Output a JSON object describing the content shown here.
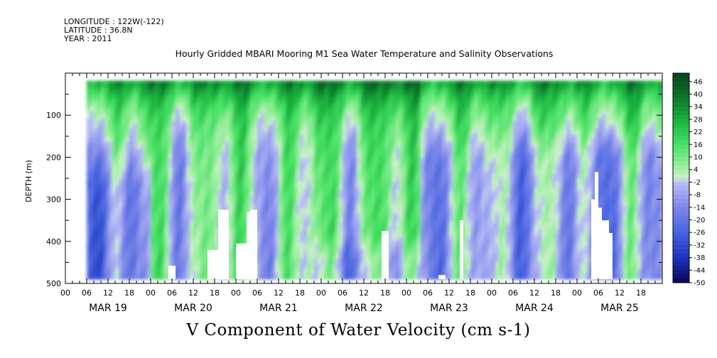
{
  "header": {
    "longitude": "LONGITUDE : 122W(-122)",
    "latitude": "LATITUDE : 36.8N",
    "year": "YEAR : 2011"
  },
  "title": "Hourly Gridded MBARI Mooring M1 Sea Water Temperature and Salinity Observations",
  "caption": "V Component of Water Velocity (cm s-1)",
  "chart_data": {
    "type": "heatmap",
    "title": "Hourly Gridded MBARI Mooring M1 Sea Water Temperature and Salinity Observations",
    "xlabel": "",
    "ylabel": "DEPTH (m)",
    "colorbar_label": "V Component of Water Velocity (cm s-1)",
    "y_inverted": true,
    "ylim": [
      500,
      0
    ],
    "y_ticks": [
      100,
      200,
      300,
      400,
      500
    ],
    "x_hour_ticks": [
      "00",
      "06",
      "12",
      "18",
      "00",
      "06",
      "12",
      "18",
      "00",
      "06",
      "12",
      "18",
      "00",
      "06",
      "12",
      "18",
      "00",
      "06",
      "12",
      "18",
      "00",
      "06",
      "12",
      "18",
      "00",
      "06",
      "12",
      "18"
    ],
    "x_day_labels": [
      "MAR 19",
      "MAR 20",
      "MAR 21",
      "MAR 22",
      "MAR 23",
      "MAR 24",
      "MAR 25"
    ],
    "x_range_hours": [
      0,
      168
    ],
    "data_x_range_hours": [
      6,
      168
    ],
    "data_depth_range": [
      18,
      490
    ],
    "colorbar_ticks": [
      46,
      40,
      34,
      28,
      22,
      16,
      10,
      4,
      -2,
      -8,
      -14,
      -20,
      -26,
      -32,
      -38,
      -44,
      -50
    ],
    "colorbar_range": [
      -50,
      50
    ],
    "colors": {
      "strong_negative": "#0a0a70",
      "moderate_negative": "#4a63e0",
      "weak_negative": "#a8aef0",
      "weak_positive": "#a8f0a8",
      "moderate_positive": "#33dd55",
      "strong_positive": "#0a5a20"
    },
    "pattern": {
      "surface_band": "strong positive (20–46) in upper ~100 m throughout the record",
      "deep_mar19": "negative (-10 to -30) below ~250 m",
      "mar20_21": "alternating vertical positive/negative bands",
      "mar22": "mostly positive, deep negative patches near 400–480 m",
      "mar23_25": "weak negative (-2 to -15) below ~150 m, positive near surface"
    },
    "data_gaps": "white blank areas at depth near MAR 20 (12–15h) and MAR 25 (01–05h)"
  }
}
